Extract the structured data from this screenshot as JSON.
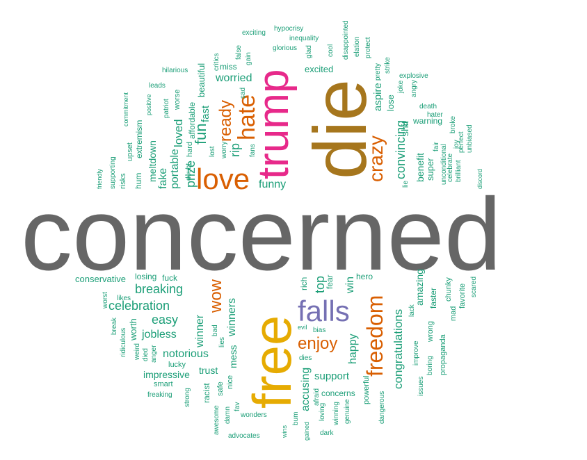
{
  "palette": {
    "gray": "#666666",
    "olive": "#A6761D",
    "gold": "#E6AB02",
    "magenta": "#E7298A",
    "orange": "#D95F02",
    "purple": "#7570B3",
    "teal": "#1B9E77",
    "green": "#66A61E"
  },
  "words": [
    {
      "text": "concerned",
      "color": "gray"
    },
    {
      "text": "die",
      "color": "olive"
    },
    {
      "text": "free",
      "color": "gold"
    },
    {
      "text": "trump",
      "color": "magenta"
    },
    {
      "text": "love",
      "color": "orange"
    },
    {
      "text": "hate",
      "color": "orange"
    },
    {
      "text": "falls",
      "color": "purple"
    },
    {
      "text": "freedom",
      "color": "orange"
    },
    {
      "text": "crazy",
      "color": "orange"
    },
    {
      "text": "ready",
      "color": "orange"
    },
    {
      "text": "enjoy",
      "color": "orange"
    },
    {
      "text": "wow",
      "color": "orange"
    },
    {
      "text": "fun",
      "color": "teal"
    },
    {
      "text": "rip",
      "color": "teal"
    },
    {
      "text": "worried",
      "color": "teal"
    },
    {
      "text": "funny",
      "color": "teal"
    },
    {
      "text": "excited",
      "color": "teal"
    },
    {
      "text": "convincing",
      "color": "teal"
    },
    {
      "text": "aspire",
      "color": "teal"
    },
    {
      "text": "benefit",
      "color": "teal"
    },
    {
      "text": "shit",
      "color": "teal"
    },
    {
      "text": "lose",
      "color": "teal"
    },
    {
      "text": "super",
      "color": "teal"
    },
    {
      "text": "warning",
      "color": "teal"
    },
    {
      "text": "prize",
      "color": "teal"
    },
    {
      "text": "loved",
      "color": "teal"
    },
    {
      "text": "fast",
      "color": "teal"
    },
    {
      "text": "beautiful",
      "color": "teal"
    },
    {
      "text": "fake",
      "color": "teal"
    },
    {
      "text": "portable",
      "color": "teal"
    },
    {
      "text": "meltdown",
      "color": "teal"
    },
    {
      "text": "affordable",
      "color": "teal"
    },
    {
      "text": "breaking",
      "color": "teal"
    },
    {
      "text": "celebration",
      "color": "teal"
    },
    {
      "text": "easy",
      "color": "teal"
    },
    {
      "text": "jobless",
      "color": "teal"
    },
    {
      "text": "notorious",
      "color": "teal"
    },
    {
      "text": "winners",
      "color": "teal"
    },
    {
      "text": "winner",
      "color": "teal"
    },
    {
      "text": "mess",
      "color": "teal"
    },
    {
      "text": "top",
      "color": "teal"
    },
    {
      "text": "win",
      "color": "teal"
    },
    {
      "text": "happy",
      "color": "teal"
    },
    {
      "text": "accusing",
      "color": "teal"
    },
    {
      "text": "support",
      "color": "teal"
    },
    {
      "text": "congratulations",
      "color": "teal"
    },
    {
      "text": "amazing",
      "color": "teal"
    },
    {
      "text": "impressive",
      "color": "teal"
    },
    {
      "text": "trust",
      "color": "teal"
    },
    {
      "text": "worth",
      "color": "teal"
    },
    {
      "text": "conservative",
      "color": "teal"
    },
    {
      "text": "concerns",
      "color": "teal"
    },
    {
      "text": "rich",
      "color": "teal"
    },
    {
      "text": "fear",
      "color": "teal"
    },
    {
      "text": "hero",
      "color": "teal"
    },
    {
      "text": "losing",
      "color": "teal"
    },
    {
      "text": "fuck",
      "color": "teal"
    },
    {
      "text": "powerful",
      "color": "teal"
    },
    {
      "text": "hum",
      "color": "teal"
    },
    {
      "text": "extremism",
      "color": "teal"
    },
    {
      "text": "upset",
      "color": "teal"
    },
    {
      "text": "risks",
      "color": "teal"
    },
    {
      "text": "supporting",
      "color": "teal"
    },
    {
      "text": "friendly",
      "color": "teal"
    },
    {
      "text": "commitment",
      "color": "teal"
    },
    {
      "text": "positive",
      "color": "teal"
    },
    {
      "text": "patriot",
      "color": "teal"
    },
    {
      "text": "worse",
      "color": "teal"
    },
    {
      "text": "hard",
      "color": "teal"
    },
    {
      "text": "doubt",
      "color": "teal"
    },
    {
      "text": "lost",
      "color": "teal"
    },
    {
      "text": "worry",
      "color": "teal"
    },
    {
      "text": "fans",
      "color": "teal"
    },
    {
      "text": "sad",
      "color": "teal"
    },
    {
      "text": "gain",
      "color": "teal"
    },
    {
      "text": "false",
      "color": "teal"
    },
    {
      "text": "miss",
      "color": "teal"
    },
    {
      "text": "critics",
      "color": "teal"
    },
    {
      "text": "leads",
      "color": "teal"
    },
    {
      "text": "hilarious",
      "color": "teal"
    },
    {
      "text": "exciting",
      "color": "teal"
    },
    {
      "text": "hypocrisy",
      "color": "teal"
    },
    {
      "text": "glorious",
      "color": "teal"
    },
    {
      "text": "inequality",
      "color": "teal"
    },
    {
      "text": "glad",
      "color": "teal"
    },
    {
      "text": "cool",
      "color": "teal"
    },
    {
      "text": "disappointed",
      "color": "teal"
    },
    {
      "text": "elation",
      "color": "teal"
    },
    {
      "text": "protect",
      "color": "teal"
    },
    {
      "text": "pretty",
      "color": "teal"
    },
    {
      "text": "strike",
      "color": "teal"
    },
    {
      "text": "joke",
      "color": "teal"
    },
    {
      "text": "angry",
      "color": "teal"
    },
    {
      "text": "explosive",
      "color": "teal"
    },
    {
      "text": "death",
      "color": "teal"
    },
    {
      "text": "hater",
      "color": "teal"
    },
    {
      "text": "broke",
      "color": "teal"
    },
    {
      "text": "unbiased",
      "color": "teal"
    },
    {
      "text": "perfect",
      "color": "teal"
    },
    {
      "text": "joy",
      "color": "teal"
    },
    {
      "text": "brilliant",
      "color": "teal"
    },
    {
      "text": "celebrate",
      "color": "teal"
    },
    {
      "text": "fair",
      "color": "teal"
    },
    {
      "text": "unconditional",
      "color": "teal"
    },
    {
      "text": "discord",
      "color": "teal"
    },
    {
      "text": "lie",
      "color": "teal"
    },
    {
      "text": "lack",
      "color": "teal"
    },
    {
      "text": "improve",
      "color": "teal"
    },
    {
      "text": "boring",
      "color": "teal"
    },
    {
      "text": "wrong",
      "color": "teal"
    },
    {
      "text": "propaganda",
      "color": "teal"
    },
    {
      "text": "faster",
      "color": "teal"
    },
    {
      "text": "mad",
      "color": "teal"
    },
    {
      "text": "chunky",
      "color": "teal"
    },
    {
      "text": "favorite",
      "color": "teal"
    },
    {
      "text": "scared",
      "color": "teal"
    },
    {
      "text": "issues",
      "color": "teal"
    },
    {
      "text": "dangerous",
      "color": "teal"
    },
    {
      "text": "genuine",
      "color": "teal"
    },
    {
      "text": "winning",
      "color": "teal"
    },
    {
      "text": "loving",
      "color": "teal"
    },
    {
      "text": "afraid",
      "color": "teal"
    },
    {
      "text": "gained",
      "color": "teal"
    },
    {
      "text": "bum",
      "color": "teal"
    },
    {
      "text": "wins",
      "color": "teal"
    },
    {
      "text": "dark",
      "color": "teal"
    },
    {
      "text": "advocates",
      "color": "teal"
    },
    {
      "text": "wonders",
      "color": "teal"
    },
    {
      "text": "dies",
      "color": "teal"
    },
    {
      "text": "evil",
      "color": "teal"
    },
    {
      "text": "bias",
      "color": "teal"
    },
    {
      "text": "fav",
      "color": "teal"
    },
    {
      "text": "damn",
      "color": "teal"
    },
    {
      "text": "awesome",
      "color": "teal"
    },
    {
      "text": "nice",
      "color": "teal"
    },
    {
      "text": "safe",
      "color": "teal"
    },
    {
      "text": "racist",
      "color": "teal"
    },
    {
      "text": "strong",
      "color": "teal"
    },
    {
      "text": "bad",
      "color": "teal"
    },
    {
      "text": "lies",
      "color": "teal"
    },
    {
      "text": "smart",
      "color": "teal"
    },
    {
      "text": "freaking",
      "color": "teal"
    },
    {
      "text": "lucky",
      "color": "teal"
    },
    {
      "text": "anger",
      "color": "teal"
    },
    {
      "text": "died",
      "color": "teal"
    },
    {
      "text": "weird",
      "color": "teal"
    },
    {
      "text": "ridiculous",
      "color": "teal"
    },
    {
      "text": "break",
      "color": "teal"
    },
    {
      "text": "worst",
      "color": "teal"
    },
    {
      "text": "likes",
      "color": "teal"
    }
  ]
}
